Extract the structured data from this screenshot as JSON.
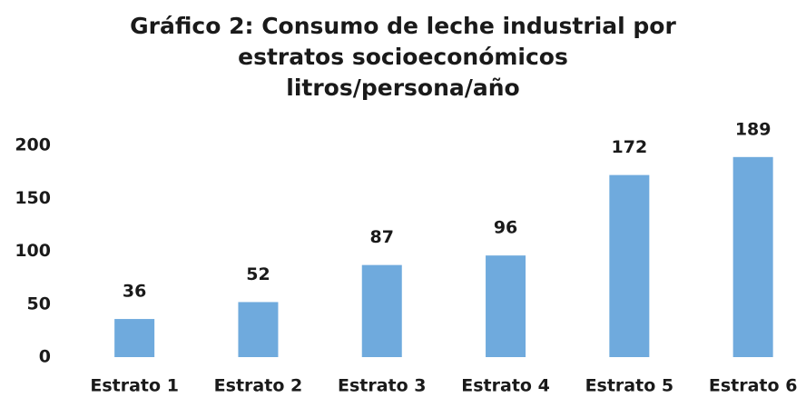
{
  "chart_data": {
    "type": "bar",
    "title": "Gráfico 2: Consumo de leche industrial por estratos socioeconómicos",
    "subtitle": "litros/persona/año",
    "categories": [
      "Estrato 1",
      "Estrato 2",
      "Estrato 3",
      "Estrato 4",
      "Estrato 5",
      "Estrato 6"
    ],
    "values": [
      36,
      52,
      87,
      96,
      172,
      189
    ],
    "color": "#6faadd",
    "ylim": [
      0,
      200
    ],
    "yticks": [
      0,
      50,
      100,
      150,
      200
    ],
    "grid": false
  }
}
